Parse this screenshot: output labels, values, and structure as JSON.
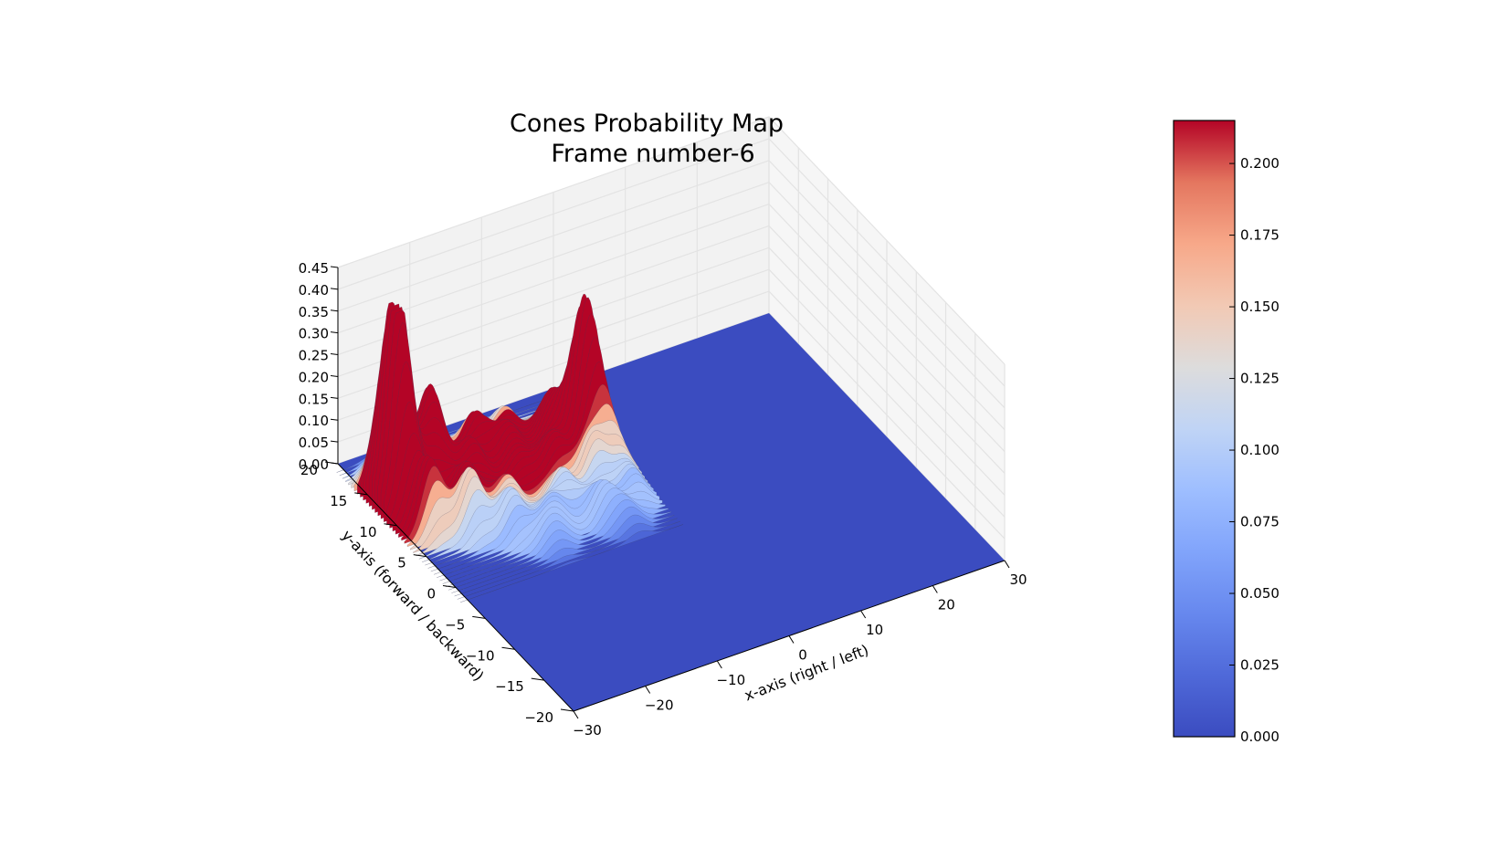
{
  "chart_data": {
    "type": "surface3d",
    "title": [
      "Cones Probability Map",
      "Frame number-6"
    ],
    "xlabel": "x-axis (right / left)",
    "ylabel": "y-axis (forward / backward)",
    "zlabel": "",
    "xlim": [
      -30,
      30
    ],
    "ylim": [
      -20,
      20
    ],
    "zlim": [
      0,
      0.45
    ],
    "x_ticks": [
      "−30",
      "−20",
      "−10",
      "0",
      "10",
      "20",
      "30"
    ],
    "x_tick_values": [
      -30,
      -20,
      -10,
      0,
      10,
      20,
      30
    ],
    "y_ticks": [
      "−20",
      "−15",
      "−10",
      "−5",
      "0",
      "5",
      "10",
      "15",
      "20"
    ],
    "y_tick_values": [
      -20,
      -15,
      -10,
      -5,
      0,
      5,
      10,
      15,
      20
    ],
    "z_ticks": [
      "0.00",
      "0.05",
      "0.10",
      "0.15",
      "0.20",
      "0.25",
      "0.30",
      "0.35",
      "0.40",
      "0.45"
    ],
    "z_tick_values": [
      0,
      0.05,
      0.1,
      0.15,
      0.2,
      0.25,
      0.3,
      0.35,
      0.4,
      0.45
    ],
    "colormap": "coolwarm",
    "colorbar": {
      "min": 0.0,
      "max": 0.215,
      "ticks": [
        "0.000",
        "0.025",
        "0.050",
        "0.075",
        "0.100",
        "0.125",
        "0.150",
        "0.175",
        "0.200"
      ],
      "tick_values": [
        0,
        0.025,
        0.05,
        0.075,
        0.1,
        0.125,
        0.15,
        0.175,
        0.2
      ]
    },
    "peaks": [
      {
        "x": -28,
        "y": 12,
        "z": 0.4
      },
      {
        "x": -28,
        "y": 14,
        "z": 0.24
      },
      {
        "x": -27,
        "y": 8,
        "z": 0.16
      },
      {
        "x": -26,
        "y": 16,
        "z": 0.12
      },
      {
        "x": -24,
        "y": 12,
        "z": 0.1
      },
      {
        "x": -23,
        "y": 6,
        "z": 0.14
      },
      {
        "x": -22,
        "y": 14,
        "z": 0.2
      },
      {
        "x": -21,
        "y": 9,
        "z": 0.1
      },
      {
        "x": -20,
        "y": 17,
        "z": 0.12
      },
      {
        "x": -19,
        "y": 4,
        "z": 0.1
      },
      {
        "x": -18,
        "y": 12,
        "z": 0.1
      },
      {
        "x": -17,
        "y": 7,
        "z": 0.08
      },
      {
        "x": -15,
        "y": 15,
        "z": 0.1
      },
      {
        "x": -14,
        "y": 3,
        "z": 0.07
      },
      {
        "x": -13,
        "y": 10,
        "z": 0.06
      },
      {
        "x": -12,
        "y": 13,
        "z": 0.08
      },
      {
        "x": -11,
        "y": 5,
        "z": 0.09
      },
      {
        "x": -10,
        "y": 16,
        "z": 0.07
      },
      {
        "x": -9,
        "y": 9,
        "z": 0.1
      },
      {
        "x": -8,
        "y": 2,
        "z": 0.08
      },
      {
        "x": -7,
        "y": 12,
        "z": 0.08
      },
      {
        "x": -6,
        "y": 6,
        "z": 0.12
      },
      {
        "x": -5,
        "y": 14,
        "z": 0.1
      },
      {
        "x": -4,
        "y": 10,
        "z": 0.34
      },
      {
        "x": -3,
        "y": 8,
        "z": 0.12
      },
      {
        "x": -3,
        "y": 3,
        "z": 0.07
      },
      {
        "x": -2,
        "y": 6,
        "z": 0.05
      },
      {
        "x": -16,
        "y": 1,
        "z": 0.06
      },
      {
        "x": -6,
        "y": 0,
        "z": 0.05
      }
    ]
  }
}
